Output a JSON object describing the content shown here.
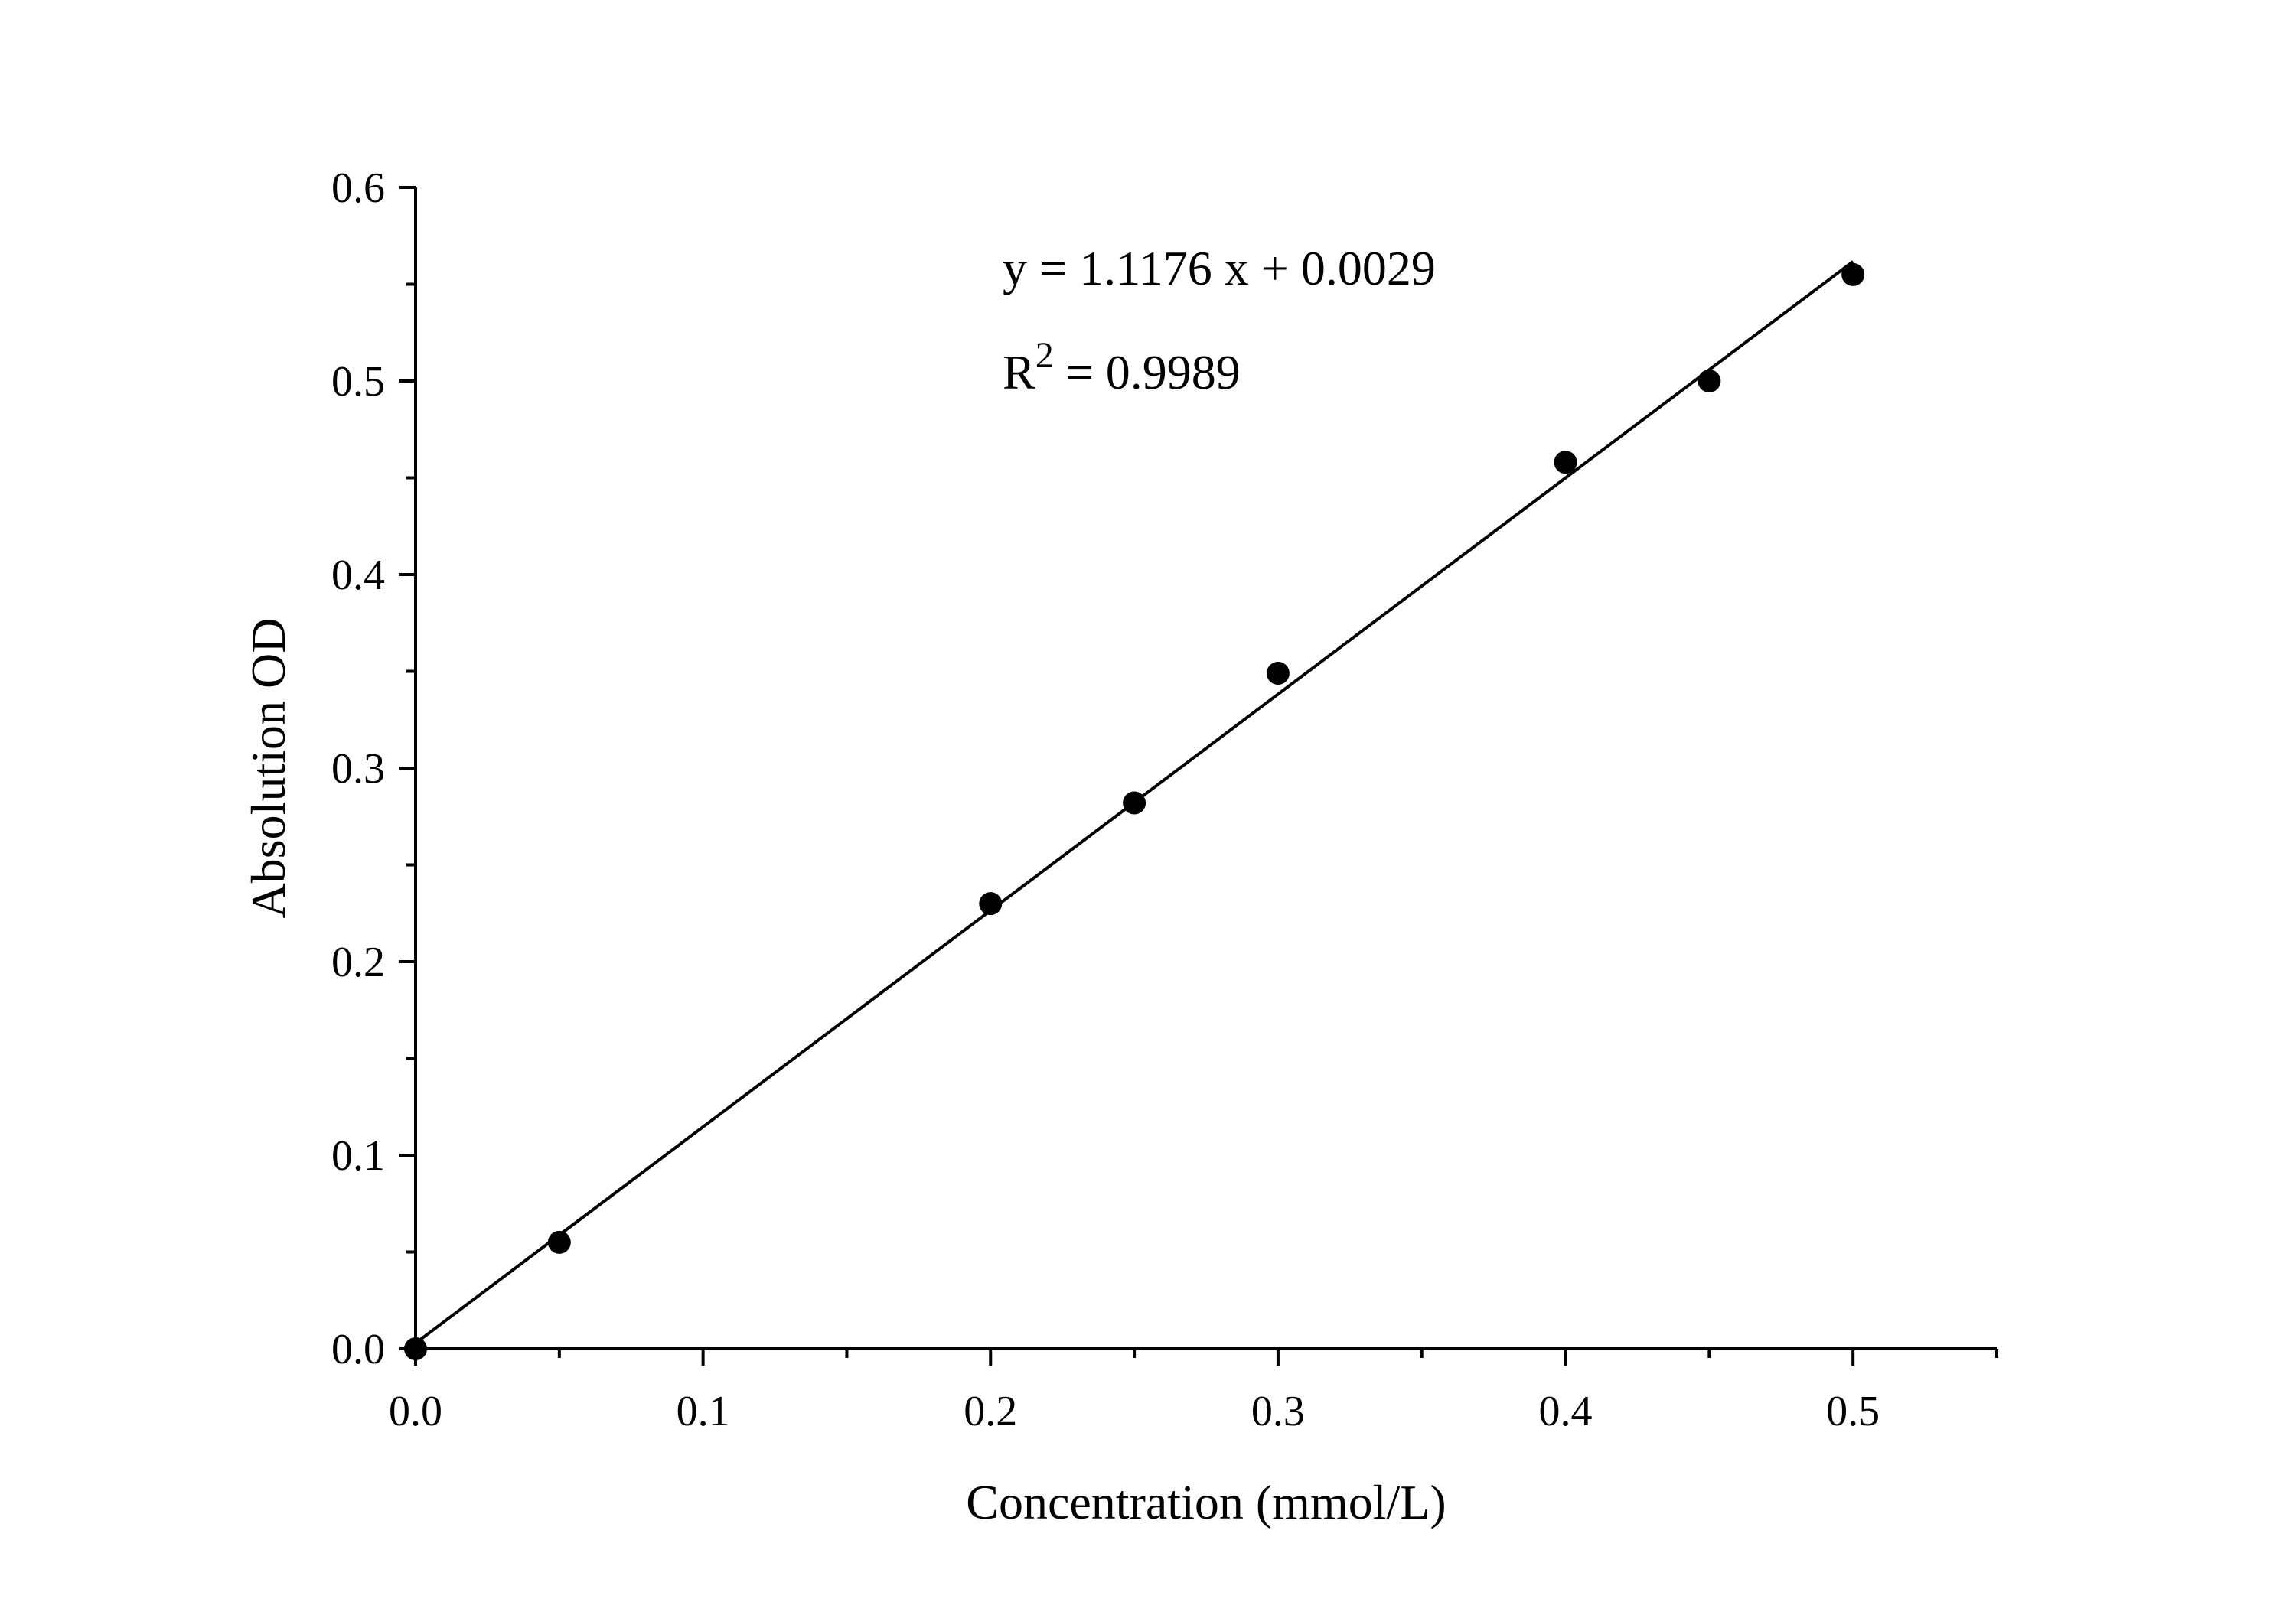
{
  "chart_data": {
    "type": "scatter",
    "xlabel": "Concentration (mmol/L)",
    "ylabel": "Absolution OD",
    "xlim": [
      0,
      0.55
    ],
    "ylim": [
      0,
      0.6
    ],
    "x_ticks": [
      "0.0",
      "0.1",
      "0.2",
      "0.3",
      "0.4",
      "0.5"
    ],
    "y_ticks": [
      "0.0",
      "0.1",
      "0.2",
      "0.3",
      "0.4",
      "0.5",
      "0.6"
    ],
    "grid": false,
    "series": [
      {
        "x": [
          0,
          0.05,
          0.2,
          0.25,
          0.3,
          0.4,
          0.45,
          0.5
        ],
        "y": [
          0,
          0.055,
          0.23,
          0.282,
          0.349,
          0.458,
          0.5,
          0.555
        ],
        "color": "#000000"
      }
    ],
    "fit": {
      "slope": 1.1176,
      "intercept": 0.0029,
      "x_range": [
        0,
        0.5
      ]
    },
    "annotations": {
      "equation": "y = 1.1176 x + 0.0029",
      "r2_prefix": "R",
      "r2_sup": "2",
      "r2_value": " = 0.9989"
    }
  }
}
